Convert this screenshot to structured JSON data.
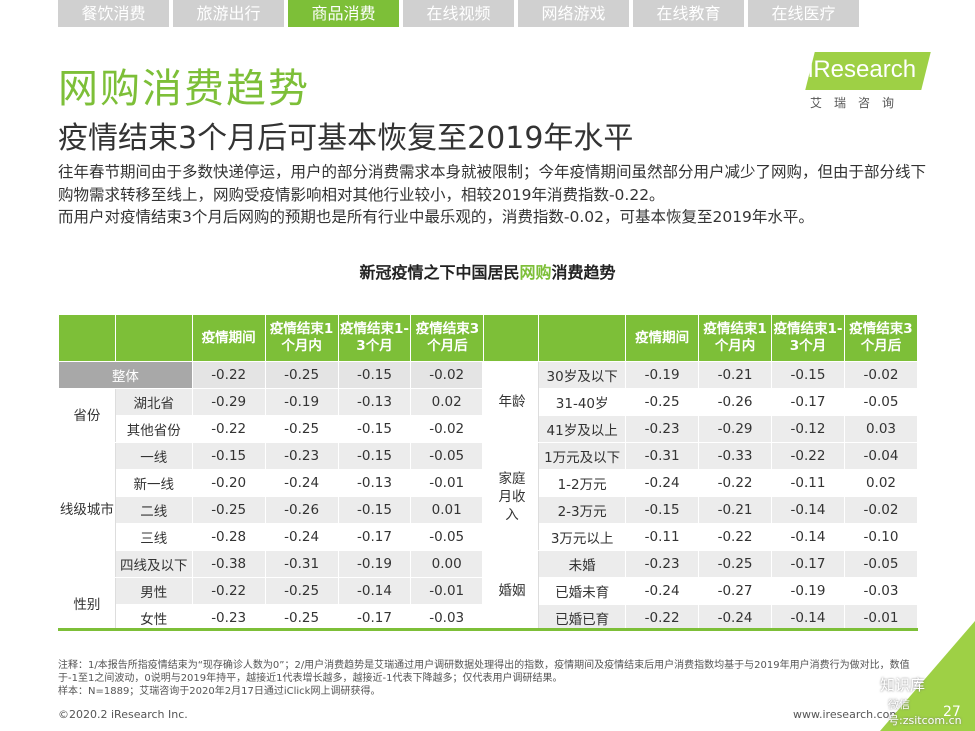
{
  "tabs": [
    "餐饮消费",
    "旅游出行",
    "商品消费",
    "在线视频",
    "网络游戏",
    "在线教育",
    "在线医疗"
  ],
  "active_tab": 2,
  "title": "网购消费趋势",
  "subtitle": "疫情结束3个月后可基本恢复至2019年水平",
  "logo": {
    "text": "iResearch",
    "cn": "艾瑞咨询"
  },
  "description": [
    "往年春节期间由于多数快递停运，用户的部分消费需求本身就被限制；今年疫情期间虽然部分用户减少了网购，但由于部分线下购物需求转移至线上，网购受疫情影响相对其他行业较小，相较2019年消费指数-0.22。",
    "而用户对疫情结束3个月后网购的预期也是所有行业中最乐观的，消费指数-0.02，可基本恢复至2019年水平。"
  ],
  "table_title": {
    "pre": "新冠疫情之下中国居民",
    "hl": "网购",
    "post": "消费趋势"
  },
  "headers": [
    "疫情期间",
    "疫情结束1个月内",
    "疫情结束1-3个月",
    "疫情结束3个月后"
  ],
  "left": {
    "overall": {
      "label": "整体",
      "values": [
        "-0.22",
        "-0.25",
        "-0.15",
        "-0.02"
      ]
    },
    "groups": [
      {
        "name": "省份",
        "rows": [
          {
            "label": "湖北省",
            "values": [
              "-0.29",
              "-0.19",
              "-0.13",
              "0.02"
            ]
          },
          {
            "label": "其他省份",
            "values": [
              "-0.22",
              "-0.25",
              "-0.15",
              "-0.02"
            ]
          }
        ]
      },
      {
        "name": "线级城市",
        "rows": [
          {
            "label": "一线",
            "values": [
              "-0.15",
              "-0.23",
              "-0.15",
              "-0.05"
            ]
          },
          {
            "label": "新一线",
            "values": [
              "-0.20",
              "-0.24",
              "-0.13",
              "-0.01"
            ]
          },
          {
            "label": "二线",
            "values": [
              "-0.25",
              "-0.26",
              "-0.15",
              "0.01"
            ]
          },
          {
            "label": "三线",
            "values": [
              "-0.28",
              "-0.24",
              "-0.17",
              "-0.05"
            ]
          },
          {
            "label": "四线及以下",
            "values": [
              "-0.38",
              "-0.31",
              "-0.19",
              "0.00"
            ]
          }
        ]
      },
      {
        "name": "性别",
        "rows": [
          {
            "label": "男性",
            "values": [
              "-0.22",
              "-0.25",
              "-0.14",
              "-0.01"
            ]
          },
          {
            "label": "女性",
            "values": [
              "-0.23",
              "-0.25",
              "-0.17",
              "-0.03"
            ]
          }
        ]
      }
    ]
  },
  "right": {
    "groups": [
      {
        "name": "年龄",
        "rows": [
          {
            "label": "30岁及以下",
            "values": [
              "-0.19",
              "-0.21",
              "-0.15",
              "-0.02"
            ]
          },
          {
            "label": "31-40岁",
            "values": [
              "-0.25",
              "-0.26",
              "-0.17",
              "-0.05"
            ]
          },
          {
            "label": "41岁及以上",
            "values": [
              "-0.23",
              "-0.29",
              "-0.12",
              "0.03"
            ]
          }
        ]
      },
      {
        "name": "家庭月收入",
        "rows": [
          {
            "label": "1万元及以下",
            "values": [
              "-0.31",
              "-0.33",
              "-0.22",
              "-0.04"
            ]
          },
          {
            "label": "1-2万元",
            "values": [
              "-0.24",
              "-0.22",
              "-0.11",
              "0.02"
            ]
          },
          {
            "label": "2-3万元",
            "values": [
              "-0.15",
              "-0.21",
              "-0.14",
              "-0.02"
            ]
          },
          {
            "label": "3万元以上",
            "values": [
              "-0.11",
              "-0.22",
              "-0.14",
              "-0.10"
            ]
          }
        ]
      },
      {
        "name": "婚姻",
        "rows": [
          {
            "label": "未婚",
            "values": [
              "-0.23",
              "-0.25",
              "-0.17",
              "-0.05"
            ]
          },
          {
            "label": "已婚未育",
            "values": [
              "-0.24",
              "-0.27",
              "-0.19",
              "-0.03"
            ]
          },
          {
            "label": "已婚已育",
            "values": [
              "-0.22",
              "-0.24",
              "-0.14",
              "-0.01"
            ]
          }
        ]
      }
    ]
  },
  "notes": [
    "注释：1/本报告所指疫情结束为“现存确诊人数为0”；2/用户消费趋势是艾瑞通过用户调研数据处理得出的指数，疫情期间及疫情结束后用户消费指数均基于与2019年用户消费行为做对比，数值于-1至1之间波动，0说明与2019年持平，越接近1代表增长越多，越接近-1代表下降越多；仅代表用户调研结果。",
    "样本：N=1889；艾瑞咨询于2020年2月17日通过iClick网上调研获得。"
  ],
  "footer": {
    "copyright": "©2020.2 iResearch Inc.",
    "url": "www.iresearch.com.cn",
    "page": "27"
  },
  "watermark": {
    "line1": "知识库",
    "line2": "微信号:zsitcom.cn"
  },
  "colors": {
    "accent": "#7dbf38",
    "logo": "#9ed045",
    "gray_row": "#e9e9e9"
  }
}
